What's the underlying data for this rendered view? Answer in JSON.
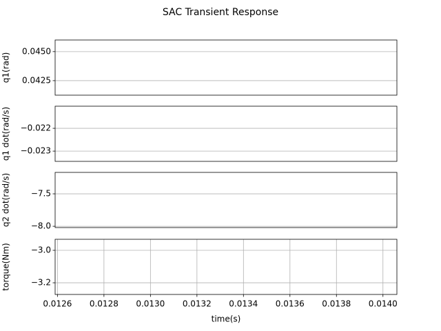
{
  "title": "SAC Transient Response",
  "chart_data": [
    {
      "type": "line",
      "ylabel": "q1(rad)",
      "ylim": [
        0.04125,
        0.046
      ],
      "yticks": [
        {
          "value": 0.045,
          "label": "0.0450"
        },
        0.0425
      ],
      "grid": "y"
    },
    {
      "type": "line",
      "ylabel": "q1 dot(rad/s)",
      "ylim": [
        -0.02345,
        -0.02103
      ],
      "yticks": [
        {
          "value": -0.022,
          "label": "−0.022"
        },
        {
          "value": -0.023,
          "label": "−0.023"
        }
      ],
      "grid": "y"
    },
    {
      "type": "line",
      "ylabel": "q2 dot(rad/s)",
      "ylim": [
        -8.02,
        -7.17
      ],
      "yticks": [
        {
          "value": -7.5,
          "label": "−7.5"
        },
        {
          "value": -8.0,
          "label": "−8.0"
        }
      ],
      "grid": "y"
    },
    {
      "type": "line",
      "ylabel": "torque(Nm)",
      "xlabel": "time(s)",
      "ylim": [
        -3.272,
        -2.932
      ],
      "yticks": [
        {
          "value": -3.0,
          "label": "−3.0"
        },
        {
          "value": -3.2,
          "label": "−3.2"
        }
      ],
      "xlim": [
        0.01259,
        0.01406
      ],
      "xticks": [
        0.0126,
        0.0128,
        {
          "value": 0.013,
          "label": "0.0130"
        },
        0.0132,
        0.0134,
        0.0136,
        0.0138,
        {
          "value": 0.014,
          "label": "0.0140"
        }
      ],
      "grid": "both"
    }
  ]
}
